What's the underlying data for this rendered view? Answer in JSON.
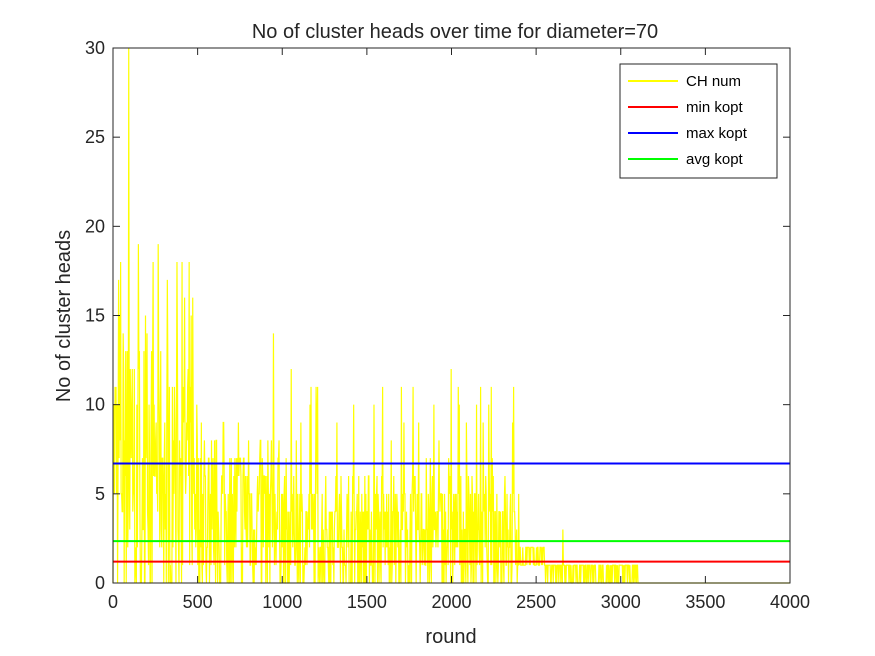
{
  "chart_data": {
    "type": "line",
    "title": "No of cluster heads over time for diameter=70",
    "xlabel": "round",
    "ylabel": "No of cluster heads",
    "xlim": [
      0,
      4000
    ],
    "ylim": [
      0,
      30
    ],
    "xticks": [
      0,
      500,
      1000,
      1500,
      2000,
      2500,
      3000,
      3500,
      4000
    ],
    "yticks": [
      0,
      5,
      10,
      15,
      20,
      25,
      30
    ],
    "grid": false,
    "legend_position": "top-right",
    "series": [
      {
        "name": "CH num",
        "color": "#FFFF00",
        "kind": "noisy",
        "segments": [
          {
            "from": 0,
            "to": 300,
            "low": 0,
            "typical": 7,
            "high": 19
          },
          {
            "from": 300,
            "to": 500,
            "low": 0,
            "typical": 6,
            "high": 18
          },
          {
            "from": 500,
            "to": 1000,
            "low": 0,
            "typical": 4,
            "high": 11
          },
          {
            "from": 1000,
            "to": 1500,
            "low": 0,
            "typical": 3,
            "high": 12
          },
          {
            "from": 1500,
            "to": 2000,
            "low": 0,
            "typical": 3,
            "high": 12
          },
          {
            "from": 2000,
            "to": 2400,
            "low": 0,
            "typical": 3,
            "high": 11
          },
          {
            "from": 2400,
            "to": 2550,
            "low": 1,
            "typical": 1.5,
            "high": 2
          },
          {
            "from": 2550,
            "to": 3100,
            "low": 0,
            "typical": 0.6,
            "high": 1
          },
          {
            "from": 3100,
            "to": 4000,
            "low": 0,
            "typical": 0,
            "high": 0
          }
        ],
        "peaks": [
          {
            "x": 95,
            "y": 30
          },
          {
            "x": 150,
            "y": 19
          },
          {
            "x": 380,
            "y": 18
          },
          {
            "x": 410,
            "y": 18
          },
          {
            "x": 950,
            "y": 14
          },
          {
            "x": 1200,
            "y": 11
          },
          {
            "x": 2000,
            "y": 12
          },
          {
            "x": 2150,
            "y": 10
          },
          {
            "x": 2660,
            "y": 3
          }
        ]
      },
      {
        "name": "min kopt",
        "color": "#FF0000",
        "kind": "constant",
        "value": 1.2
      },
      {
        "name": "max kopt",
        "color": "#0000FF",
        "kind": "constant",
        "value": 6.7
      },
      {
        "name": "avg kopt",
        "color": "#00FF00",
        "kind": "constant",
        "value": 2.35
      }
    ]
  }
}
